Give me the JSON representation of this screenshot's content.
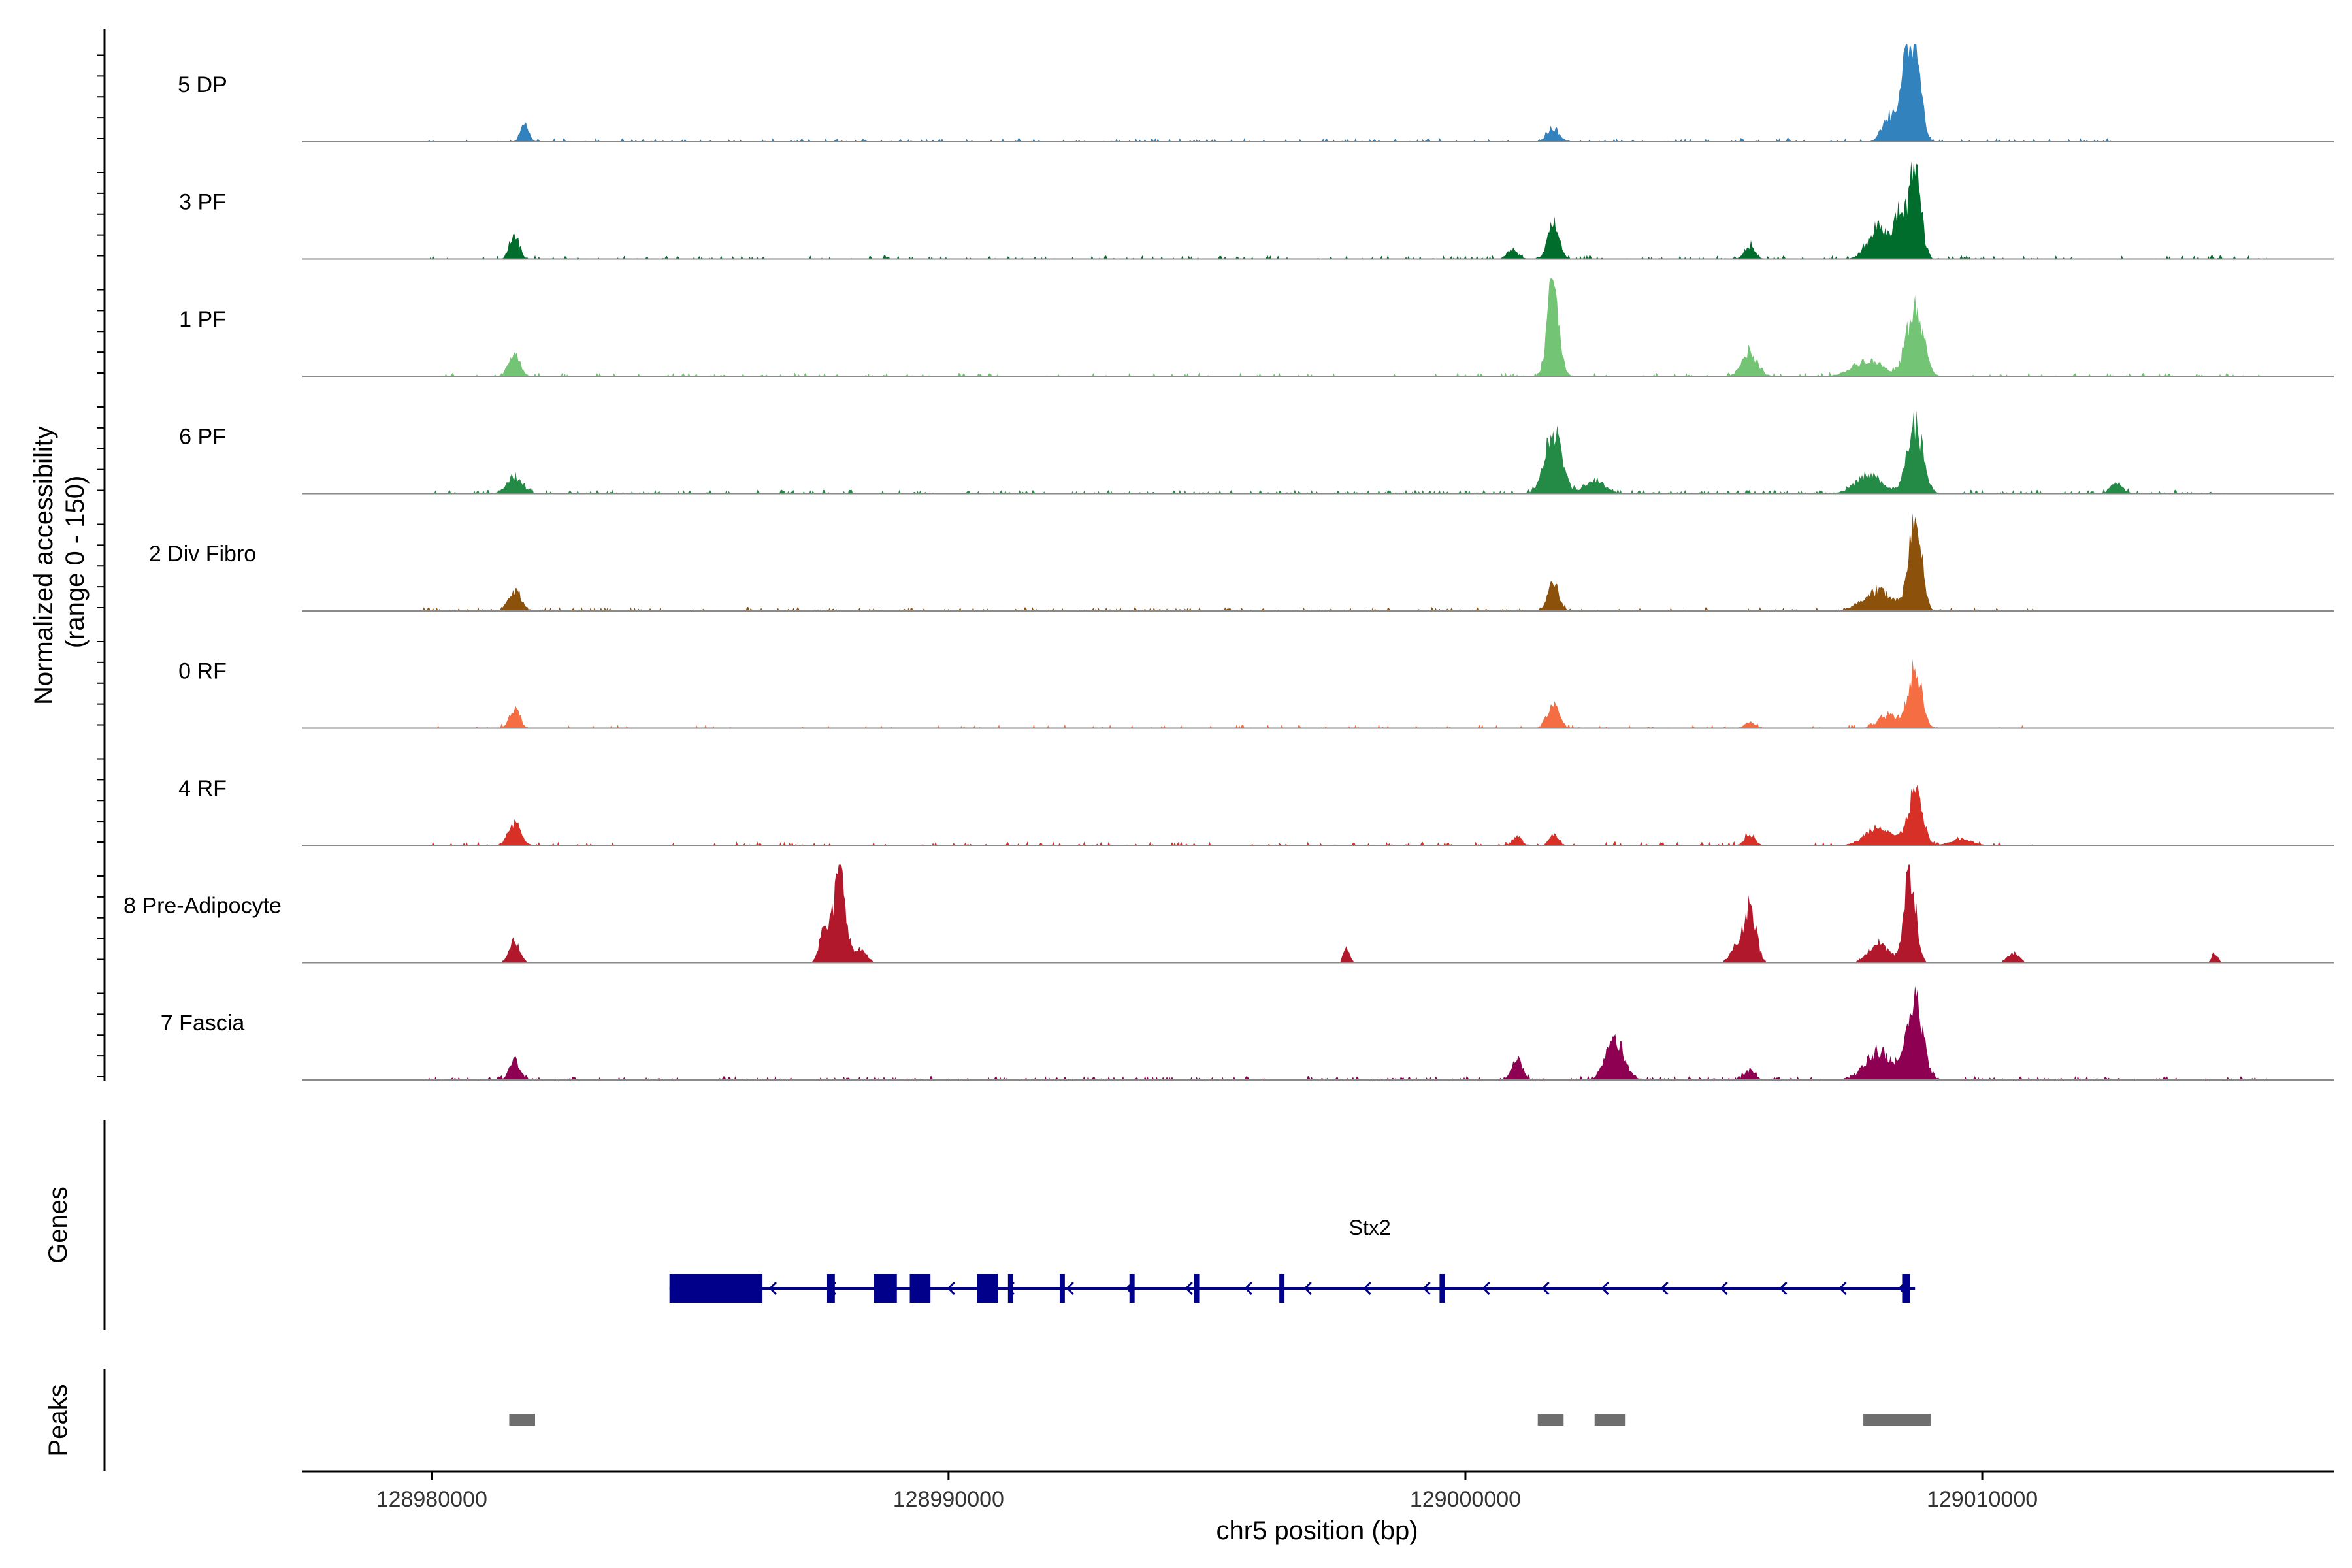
{
  "chart_data": {
    "type": "area",
    "title": "",
    "ylabel_line1": "Normalized accessibility",
    "ylabel_line2": "(range 0 - 150)",
    "xlabel": "chr5 position (bp)",
    "xlim": [
      128977500,
      129016800
    ],
    "ylim": [
      0,
      150
    ],
    "x_ticks": [
      128980000,
      128990000,
      129000000,
      129010000
    ],
    "x_tick_labels": [
      "128980000",
      "128990000",
      "129000000",
      "129010000"
    ],
    "genes_label": "Genes",
    "peaks_label": "Peaks",
    "tracks": [
      {
        "name": "5 DP",
        "color": "#3182BD",
        "peaks": [
          [
            128981800,
            28,
            80
          ],
          [
            129001700,
            20,
            120
          ],
          [
            129008200,
            40,
            140
          ],
          [
            129008500,
            95,
            90
          ],
          [
            129008700,
            150,
            110
          ]
        ],
        "noise": 0.05,
        "span": [
          128979800,
          129012800
        ]
      },
      {
        "name": "3 PF",
        "color": "#006D2C",
        "peaks": [
          [
            128981600,
            40,
            90
          ],
          [
            129000900,
            15,
            100
          ],
          [
            129001700,
            55,
            110
          ],
          [
            129005500,
            20,
            100
          ],
          [
            129008000,
            50,
            200
          ],
          [
            129008400,
            65,
            100
          ],
          [
            129008700,
            150,
            110
          ]
        ],
        "noise": 0.05,
        "span": [
          128979800,
          129015500
        ]
      },
      {
        "name": "1 PF",
        "color": "#74C476",
        "peaks": [
          [
            128981600,
            35,
            110
          ],
          [
            129001700,
            150,
            110
          ],
          [
            129005500,
            35,
            150
          ],
          [
            129007800,
            25,
            300
          ],
          [
            129008700,
            115,
            150
          ]
        ],
        "noise": 0.04,
        "span": [
          128979800,
          129015500
        ]
      },
      {
        "name": "6 PF",
        "color": "#238B45",
        "peaks": [
          [
            128981600,
            25,
            150
          ],
          [
            129001700,
            95,
            160
          ],
          [
            129002500,
            20,
            200
          ],
          [
            129007800,
            30,
            250
          ],
          [
            129008700,
            105,
            150
          ],
          [
            129012600,
            15,
            120
          ]
        ],
        "noise": 0.07,
        "span": [
          128979800,
          129014800
        ]
      },
      {
        "name": "2 Div Fibro",
        "color": "#8C510A",
        "peaks": [
          [
            128981600,
            30,
            120
          ],
          [
            129001700,
            40,
            110
          ],
          [
            129008000,
            30,
            300
          ],
          [
            129008700,
            150,
            120
          ]
        ],
        "noise": 0.05,
        "span": [
          128979800,
          129011000
        ]
      },
      {
        "name": "0 RF",
        "color": "#F46D43",
        "peaks": [
          [
            128981600,
            30,
            100
          ],
          [
            129001700,
            35,
            120
          ],
          [
            129005500,
            10,
            100
          ],
          [
            129008200,
            20,
            200
          ],
          [
            129008700,
            90,
            130
          ]
        ],
        "noise": 0.03,
        "span": [
          128979800,
          129011000
        ]
      },
      {
        "name": "4 RF",
        "color": "#D73027",
        "peaks": [
          [
            128981600,
            35,
            120
          ],
          [
            129001000,
            15,
            80
          ],
          [
            129001700,
            18,
            80
          ],
          [
            129005500,
            15,
            100
          ],
          [
            129008000,
            30,
            250
          ],
          [
            129008700,
            80,
            140
          ],
          [
            129009600,
            10,
            200
          ]
        ],
        "noise": 0.04,
        "span": [
          128979800,
          129011000
        ]
      },
      {
        "name": "8 Pre-Adipocyte",
        "color": "#B2182B",
        "peaks": [
          [
            128981600,
            35,
            100
          ],
          [
            128987600,
            50,
            100
          ],
          [
            128987900,
            150,
            110
          ],
          [
            128988300,
            20,
            120
          ],
          [
            128997700,
            25,
            60
          ],
          [
            129005500,
            90,
            120
          ],
          [
            129005200,
            20,
            100
          ],
          [
            129008000,
            30,
            200
          ],
          [
            129008600,
            140,
            110
          ],
          [
            129010600,
            15,
            120
          ],
          [
            129014500,
            15,
            60
          ]
        ],
        "noise": 0.0,
        "span": [
          128980000,
          129015000
        ],
        "sparse": true
      },
      {
        "name": "7 Fascia",
        "color": "#8E0152",
        "peaks": [
          [
            128981600,
            30,
            100
          ],
          [
            129001000,
            35,
            100
          ],
          [
            129002900,
            60,
            180
          ],
          [
            129005500,
            15,
            100
          ],
          [
            129008000,
            45,
            250
          ],
          [
            129008700,
            120,
            150
          ]
        ],
        "noise": 0.06,
        "span": [
          128979800,
          129015500
        ]
      }
    ],
    "gene": {
      "name": "Stx2",
      "color": "#00008B",
      "start": 128984600,
      "end": 129008700,
      "strand": "-",
      "exons": [
        [
          128984600,
          128986400
        ],
        [
          128987650,
          128987800
        ],
        [
          128988550,
          128989000
        ],
        [
          128989250,
          128989650
        ],
        [
          128990550,
          128990950
        ],
        [
          128991150,
          128991250
        ],
        [
          128992150,
          128992250
        ],
        [
          128993500,
          128993600
        ],
        [
          128994750,
          128994850
        ],
        [
          128996400,
          128996500
        ],
        [
          128999500,
          128999600
        ],
        [
          129008450,
          129008600
        ]
      ]
    },
    "peak_regions": [
      [
        128981500,
        128982000
      ],
      [
        129001400,
        129001900
      ],
      [
        129002500,
        129003100
      ],
      [
        129007700,
        129009000
      ]
    ],
    "peak_color": "#6E6E6E"
  }
}
